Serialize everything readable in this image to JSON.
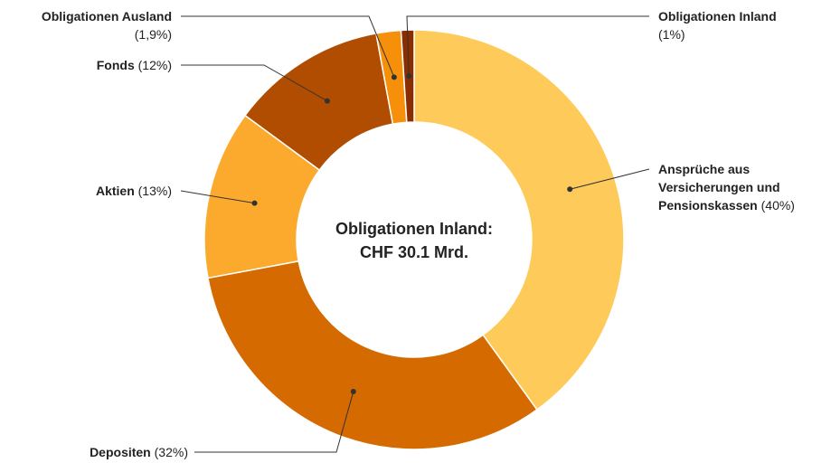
{
  "chart_data": {
    "type": "donut",
    "center_label": [
      "Obligationen Inland:",
      "CHF 30.1 Mrd."
    ],
    "categories": [
      "Ansprüche aus Versicherungen und Pensionskassen",
      "Depositen",
      "Aktien",
      "Fonds",
      "Obligationen Ausland",
      "Obligationen Inland"
    ],
    "values": [
      40,
      32,
      13,
      12,
      1.9,
      1
    ],
    "value_labels": [
      "(40%)",
      "(32%)",
      "(13%)",
      "(12%)",
      "(1,9%)",
      "(1%)"
    ],
    "colors": [
      "#fecb5a",
      "#d56b00",
      "#fbaa2e",
      "#b04d00",
      "#f68f0a",
      "#8a2d00"
    ]
  }
}
